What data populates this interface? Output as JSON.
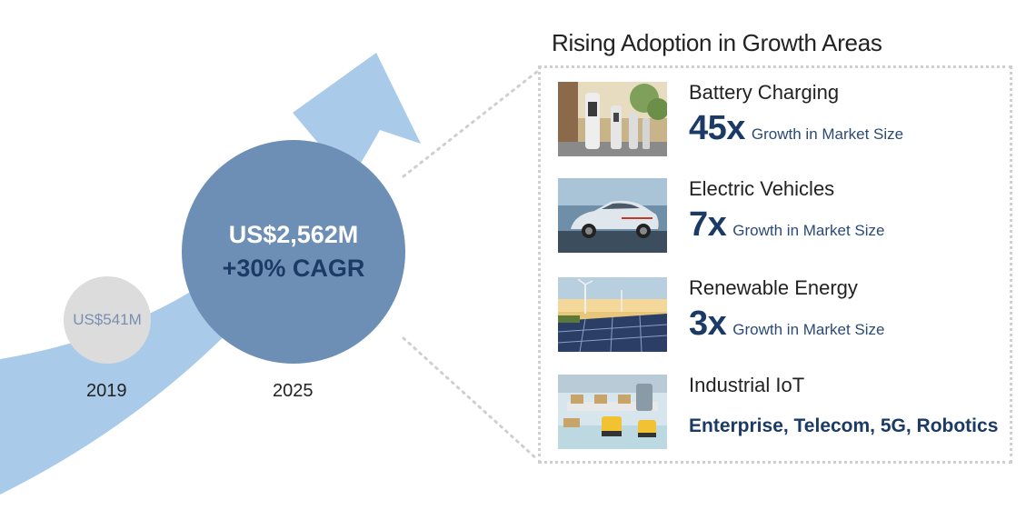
{
  "colors": {
    "arrow": "#a9cbe9",
    "circle_2019": "#dcdcdc",
    "circle_2025": "#6d8fb5",
    "accent_dark": "#1b3a66",
    "panel_border": "#cfcfcf"
  },
  "timeline": {
    "start": {
      "year": "2019",
      "value": "US$541M"
    },
    "end": {
      "year": "2025",
      "value": "US$2,562M",
      "cagr": "+30% CAGR"
    }
  },
  "panel": {
    "title": "Rising Adoption in Growth Areas",
    "items": [
      {
        "name": "Battery Charging",
        "multiplier": "45x",
        "description": "Growth in Market Size",
        "image": "ev-charger-photo"
      },
      {
        "name": "Electric Vehicles",
        "multiplier": "7x",
        "description": "Growth in Market Size",
        "image": "electric-car-photo"
      },
      {
        "name": "Renewable Energy",
        "multiplier": "3x",
        "description": "Growth in Market Size",
        "image": "solar-wind-photo"
      },
      {
        "name": "Industrial IoT",
        "subtitle": "Enterprise, Telecom, 5G, Robotics",
        "image": "factory-robots-photo"
      }
    ]
  }
}
